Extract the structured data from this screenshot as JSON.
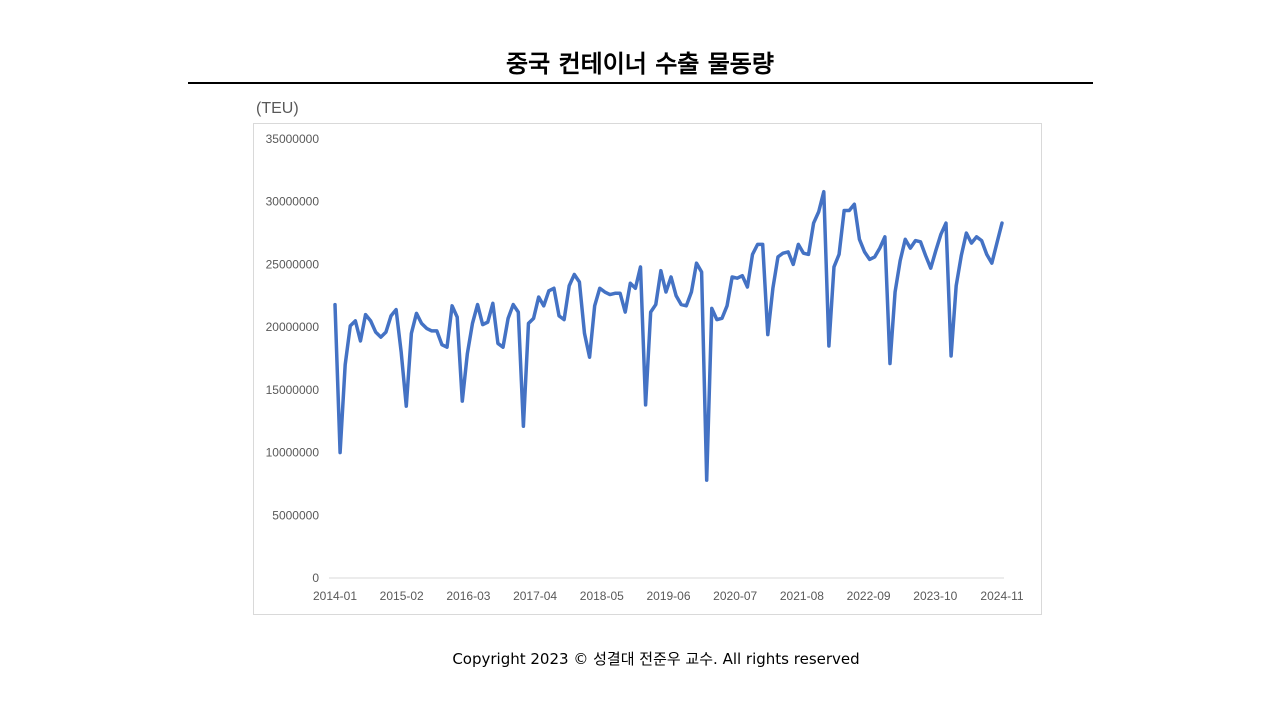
{
  "title": "중국 컨테이너 수출 물동량",
  "footer": "Copyright 2023 © 성결대 전준우 교수. All rights reserved",
  "chart_data": {
    "type": "line",
    "title": "중국 컨테이너 수출 물동량",
    "ylabel": "(TEU)",
    "xlabel": "",
    "ylim": [
      0,
      35000000
    ],
    "y_ticks": [
      0,
      5000000,
      10000000,
      15000000,
      20000000,
      25000000,
      30000000,
      35000000
    ],
    "x_tick_labels": [
      "2014-01",
      "2015-02",
      "2016-03",
      "2017-04",
      "2018-05",
      "2019-06",
      "2020-07",
      "2021-08",
      "2022-09",
      "2023-10",
      "2024-11"
    ],
    "x_start": "2014-01",
    "x_end": "2024-11",
    "grid": false,
    "legend": "none",
    "line_color": "#4472c4",
    "series": [
      {
        "values": [
          21800000,
          10000000,
          17000000,
          20100000,
          20500000,
          18900000,
          21000000,
          20500000,
          19600000,
          19200000,
          19600000,
          20900000,
          21400000,
          18000000,
          13700000,
          19500000,
          21100000,
          20300000,
          19900000,
          19700000,
          19700000,
          18600000,
          18400000,
          21700000,
          20800000,
          14100000,
          17900000,
          20300000,
          21800000,
          20200000,
          20400000,
          21900000,
          18700000,
          18400000,
          20700000,
          21800000,
          21200000,
          12100000,
          20300000,
          20700000,
          22400000,
          21700000,
          22900000,
          23100000,
          20900000,
          20600000,
          23300000,
          24200000,
          23600000,
          19500000,
          17600000,
          21700000,
          23100000,
          22800000,
          22600000,
          22700000,
          22700000,
          21200000,
          23500000,
          23100000,
          24800000,
          13800000,
          21200000,
          21800000,
          24500000,
          22800000,
          24000000,
          22500000,
          21800000,
          21700000,
          22800000,
          25100000,
          24400000,
          7800000,
          21500000,
          20600000,
          20700000,
          21700000,
          24000000,
          23900000,
          24100000,
          23200000,
          25800000,
          26600000,
          26600000,
          19400000,
          23100000,
          25600000,
          25900000,
          26000000,
          25000000,
          26600000,
          25900000,
          25800000,
          28300000,
          29200000,
          30800000,
          18500000,
          24800000,
          25800000,
          29300000,
          29300000,
          29800000,
          27000000,
          26000000,
          25400000,
          25600000,
          26300000,
          27200000,
          17100000,
          22800000,
          25300000,
          27000000,
          26300000,
          26900000,
          26800000,
          25700000,
          24700000,
          26100000,
          27400000,
          28300000,
          17700000,
          23300000,
          25700000,
          27500000,
          26700000,
          27200000,
          26900000,
          25800000,
          25100000,
          26700000,
          28300000
        ]
      }
    ]
  }
}
